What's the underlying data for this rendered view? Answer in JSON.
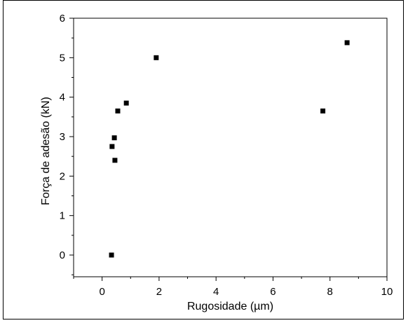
{
  "chart_data": {
    "type": "scatter",
    "title": "",
    "xlabel": "Rugosidade (µm)",
    "ylabel": "Força de adesão (kN)",
    "xlim": [
      -1,
      10
    ],
    "ylim": [
      -0.55,
      6
    ],
    "xticks": [
      0,
      2,
      4,
      6,
      8,
      10
    ],
    "yticks": [
      0,
      1,
      2,
      3,
      4,
      5,
      6
    ],
    "grid": false,
    "legend": "none",
    "marker": "square",
    "marker_color": "#000000",
    "points": [
      {
        "x": 0.33,
        "y": 0.0
      },
      {
        "x": 0.35,
        "y": 2.75
      },
      {
        "x": 0.43,
        "y": 2.97
      },
      {
        "x": 0.45,
        "y": 2.4
      },
      {
        "x": 0.55,
        "y": 3.65
      },
      {
        "x": 0.85,
        "y": 3.85
      },
      {
        "x": 1.9,
        "y": 5.0
      },
      {
        "x": 7.75,
        "y": 3.65
      },
      {
        "x": 8.6,
        "y": 5.38
      }
    ]
  }
}
